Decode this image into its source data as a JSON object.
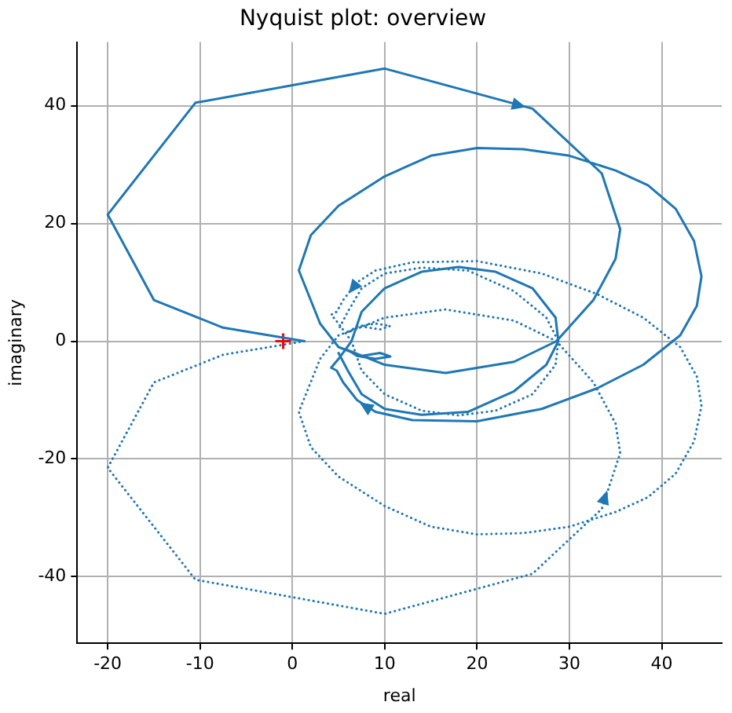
{
  "chart_data": {
    "type": "line",
    "title": "Nyquist plot: overview",
    "xlabel": "real",
    "ylabel": "imaginary",
    "xlim": [
      -23.3,
      46.5
    ],
    "ylim": [
      -51.3,
      50.8
    ],
    "xticks": [
      -20,
      -10,
      0,
      10,
      20,
      30,
      40
    ],
    "yticks": [
      -40,
      -20,
      0,
      20,
      40
    ],
    "grid": true,
    "legend": false,
    "marker": "none",
    "series": [
      {
        "type": "line",
        "color": "#1f77b4",
        "line_style": "solid",
        "x": [
          1.3,
          -7.5,
          -15,
          -20,
          -10.5,
          10,
          26,
          33.5,
          35.5,
          35,
          32.6,
          28.6,
          24,
          16.6,
          10,
          6,
          7,
          9,
          10.6,
          9.5,
          7.5,
          5,
          3,
          0.7,
          2,
          5,
          10,
          15,
          20,
          25,
          30,
          35,
          38.5,
          41.5,
          43.5,
          44.3,
          43.8,
          42,
          38,
          33,
          27,
          20,
          13,
          9,
          7,
          5.5,
          4.8,
          4.2,
          5,
          6.4,
          7.5,
          10,
          14,
          18,
          22,
          26,
          28.5,
          28.8,
          27.5,
          24,
          19,
          14,
          10,
          7.5,
          6,
          5
        ],
        "values": [
          0,
          2.3,
          7,
          21.5,
          40.5,
          46.3,
          39.5,
          28.5,
          19,
          14,
          7,
          0,
          -3.5,
          -5.4,
          -4,
          -1.5,
          -2.5,
          -3,
          -2.6,
          -2,
          -2.5,
          -1,
          3,
          12,
          18,
          23,
          28,
          31.5,
          32.8,
          32.6,
          31.5,
          29,
          26.5,
          22.5,
          17,
          11,
          6,
          1,
          -4,
          -8,
          -11.5,
          -13.6,
          -13.4,
          -12,
          -10,
          -7,
          -5,
          -4.5,
          -3,
          0,
          5,
          9,
          11.8,
          12.6,
          11.8,
          9,
          4,
          0,
          -4,
          -8.5,
          -12,
          -12.5,
          -11.5,
          -9,
          -5,
          -2
        ]
      },
      {
        "type": "line",
        "color": "#1f77b4",
        "line_style": "dotted",
        "x": [
          1.3,
          -7.5,
          -15,
          -20,
          -10.5,
          10,
          26,
          33.5,
          35.5,
          35,
          32.6,
          28.6,
          24,
          16.6,
          10,
          6,
          7,
          9,
          10.6,
          9.5,
          7.5,
          5,
          3,
          0.7,
          2,
          5,
          10,
          15,
          20,
          25,
          30,
          35,
          38.5,
          41.5,
          43.5,
          44.3,
          43.8,
          42,
          38,
          33,
          27,
          20,
          13,
          9,
          7,
          5.5,
          4.8,
          4.2,
          5,
          6.4,
          7.5,
          10,
          14,
          18,
          22,
          26,
          28.5,
          28.8,
          27.5,
          24,
          19,
          14,
          10,
          7.5,
          6,
          5
        ],
        "values": [
          0,
          -2.3,
          -7,
          -21.5,
          -40.5,
          -46.3,
          -39.5,
          -28.5,
          -19,
          -14,
          -7,
          0,
          3.5,
          5.4,
          4,
          1.5,
          2.5,
          3,
          2.6,
          2,
          2.5,
          1,
          -3,
          -12,
          -18,
          -23,
          -28,
          -31.5,
          -32.8,
          -32.6,
          -31.5,
          -29,
          -26.5,
          -22.5,
          -17,
          -11,
          -6,
          -1,
          4,
          8,
          11.5,
          13.6,
          13.4,
          12,
          10,
          7,
          5,
          4.5,
          3,
          0,
          -5,
          -9,
          -11.8,
          -12.6,
          -11.8,
          -9,
          -4,
          0,
          4,
          8.5,
          12,
          12.5,
          11.5,
          9,
          5,
          2
        ]
      },
      {
        "type": "scatter",
        "color": "#ff0000",
        "marker": "cross",
        "x": [
          -1
        ],
        "values": [
          0
        ]
      }
    ]
  }
}
